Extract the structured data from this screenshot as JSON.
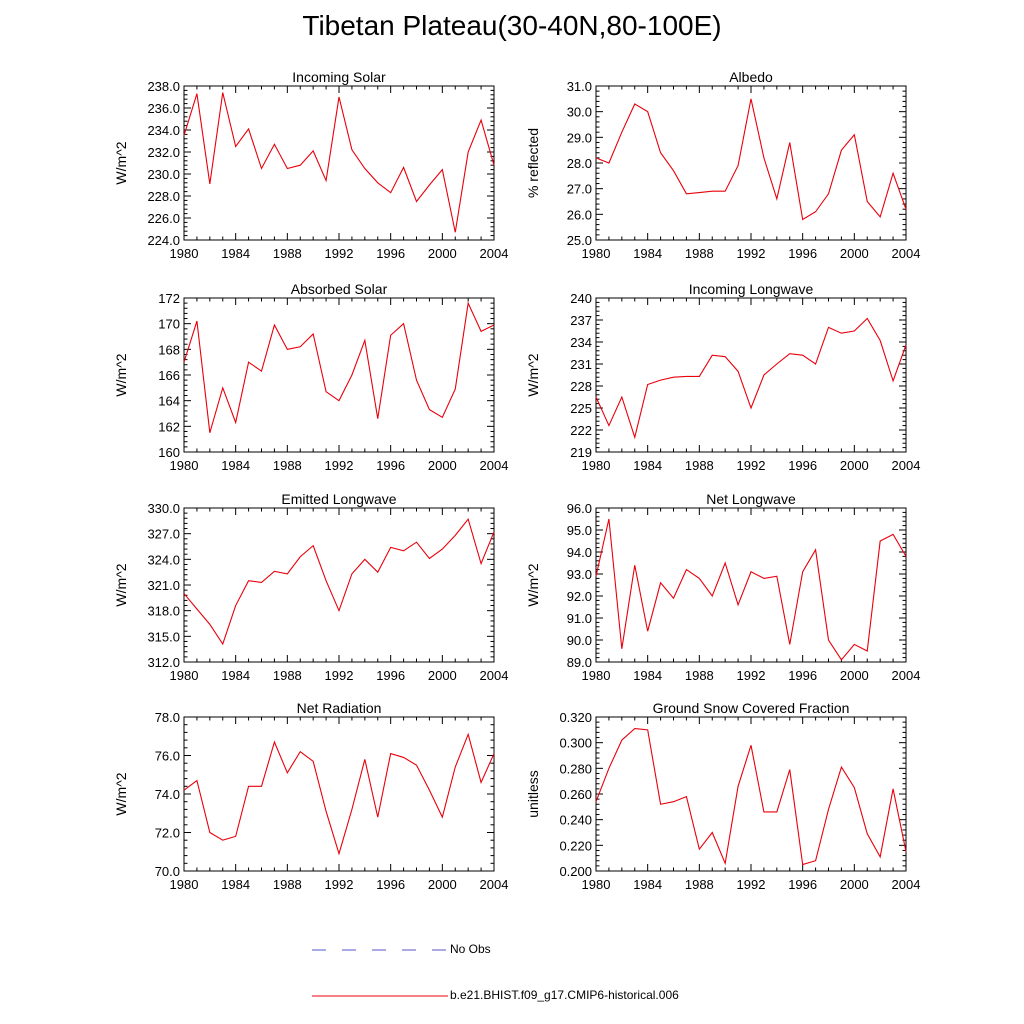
{
  "figure": {
    "title": "Tibetan Plateau(30-40N,80-100E)"
  },
  "legend": {
    "items": [
      {
        "label": "No Obs",
        "color": "#5555cc",
        "style": "dashed"
      },
      {
        "label": "b.e21.BHIST.f09_g17.CMIP6-historical.006",
        "color": "#e8000b",
        "style": "solid"
      }
    ]
  },
  "chart_data": [
    {
      "type": "line",
      "title": "Incoming Solar",
      "ylabel": "W/m^2",
      "xlabel": "",
      "xlim": [
        1980,
        2004
      ],
      "ylim": [
        224,
        238
      ],
      "yticks": [
        "224.0",
        "226.0",
        "228.0",
        "230.0",
        "232.0",
        "234.0",
        "236.0",
        "238.0"
      ],
      "xticks": [
        "1980",
        "1984",
        "1988",
        "1992",
        "1996",
        "2000",
        "2004"
      ],
      "series": [
        {
          "name": "b.e21.BHIST.f09_g17.CMIP6-historical.006",
          "color": "#e8000b",
          "x": [
            1980,
            1981,
            1982,
            1983,
            1984,
            1985,
            1986,
            1987,
            1988,
            1989,
            1990,
            1991,
            1992,
            1993,
            1994,
            1995,
            1996,
            1997,
            1998,
            1999,
            2000,
            2001,
            2002,
            2003,
            2004
          ],
          "values": [
            233.5,
            237.3,
            229.1,
            237.4,
            232.5,
            234.1,
            230.5,
            232.7,
            230.5,
            230.8,
            232.1,
            229.4,
            237.0,
            232.2,
            230.5,
            229.2,
            228.3,
            230.6,
            227.5,
            229.0,
            230.4,
            224.7,
            232.0,
            234.9,
            230.8
          ]
        }
      ]
    },
    {
      "type": "line",
      "title": "Albedo",
      "ylabel": "% reflected",
      "xlabel": "",
      "xlim": [
        1980,
        2004
      ],
      "ylim": [
        25,
        31
      ],
      "yticks": [
        "25.0",
        "26.0",
        "27.0",
        "28.0",
        "29.0",
        "30.0",
        "31.0"
      ],
      "xticks": [
        "1980",
        "1984",
        "1988",
        "1992",
        "1996",
        "2000",
        "2004"
      ],
      "series": [
        {
          "name": "b.e21.BHIST.f09_g17.CMIP6-historical.006",
          "color": "#e8000b",
          "x": [
            1980,
            1981,
            1982,
            1983,
            1984,
            1985,
            1986,
            1987,
            1988,
            1989,
            1990,
            1991,
            1992,
            1993,
            1994,
            1995,
            1996,
            1997,
            1998,
            1999,
            2000,
            2001,
            2002,
            2003,
            2004
          ],
          "values": [
            28.2,
            28.0,
            29.2,
            30.3,
            30.0,
            28.4,
            27.7,
            26.8,
            26.85,
            26.9,
            26.9,
            27.9,
            30.5,
            28.2,
            26.6,
            28.8,
            25.8,
            26.1,
            26.8,
            28.5,
            29.1,
            26.5,
            25.9,
            27.6,
            26.2
          ]
        }
      ]
    },
    {
      "type": "line",
      "title": "Absorbed Solar",
      "ylabel": "W/m^2",
      "xlabel": "",
      "xlim": [
        1980,
        2004
      ],
      "ylim": [
        160,
        172
      ],
      "yticks": [
        "160",
        "162",
        "164",
        "166",
        "168",
        "170",
        "172"
      ],
      "xticks": [
        "1980",
        "1984",
        "1988",
        "1992",
        "1996",
        "2000",
        "2004"
      ],
      "series": [
        {
          "name": "b.e21.BHIST.f09_g17.CMIP6-historical.006",
          "color": "#e8000b",
          "x": [
            1980,
            1981,
            1982,
            1983,
            1984,
            1985,
            1986,
            1987,
            1988,
            1989,
            1990,
            1991,
            1992,
            1993,
            1994,
            1995,
            1996,
            1997,
            1998,
            1999,
            2000,
            2001,
            2002,
            2003,
            2004
          ],
          "values": [
            167.0,
            170.2,
            161.5,
            165.0,
            162.3,
            167.0,
            166.3,
            169.9,
            168.0,
            168.2,
            169.2,
            164.7,
            164.0,
            166.0,
            168.7,
            162.6,
            169.1,
            170.0,
            165.6,
            163.3,
            162.7,
            164.9,
            171.6,
            169.4,
            169.9
          ]
        }
      ]
    },
    {
      "type": "line",
      "title": "Incoming Longwave",
      "ylabel": "W/m^2",
      "xlabel": "",
      "xlim": [
        1980,
        2004
      ],
      "ylim": [
        219,
        240
      ],
      "yticks": [
        "219",
        "222",
        "225",
        "228",
        "231",
        "234",
        "237",
        "240"
      ],
      "xticks": [
        "1980",
        "1984",
        "1988",
        "1992",
        "1996",
        "2000",
        "2004"
      ],
      "series": [
        {
          "name": "b.e21.BHIST.f09_g17.CMIP6-historical.006",
          "color": "#e8000b",
          "x": [
            1980,
            1981,
            1982,
            1983,
            1984,
            1985,
            1986,
            1987,
            1988,
            1989,
            1990,
            1991,
            1992,
            1993,
            1994,
            1995,
            1996,
            1997,
            1998,
            1999,
            2000,
            2001,
            2002,
            2003,
            2004
          ],
          "values": [
            226.5,
            222.6,
            226.5,
            221.0,
            228.2,
            228.8,
            229.2,
            229.3,
            229.3,
            232.2,
            232.0,
            230.0,
            225.0,
            229.5,
            231.0,
            232.4,
            232.2,
            231.0,
            236.0,
            235.2,
            235.5,
            237.2,
            234.2,
            228.7,
            233.6
          ]
        }
      ]
    },
    {
      "type": "line",
      "title": "Emitted Longwave",
      "ylabel": "W/m^2",
      "xlabel": "",
      "xlim": [
        1980,
        2004
      ],
      "ylim": [
        312,
        330
      ],
      "yticks": [
        "312.0",
        "315.0",
        "318.0",
        "321.0",
        "324.0",
        "327.0",
        "330.0"
      ],
      "xticks": [
        "1980",
        "1984",
        "1988",
        "1992",
        "1996",
        "2000",
        "2004"
      ],
      "series": [
        {
          "name": "b.e21.BHIST.f09_g17.CMIP6-historical.006",
          "color": "#e8000b",
          "x": [
            1980,
            1981,
            1982,
            1983,
            1984,
            1985,
            1986,
            1987,
            1988,
            1989,
            1990,
            1991,
            1992,
            1993,
            1994,
            1995,
            1996,
            1997,
            1998,
            1999,
            2000,
            2001,
            2002,
            2003,
            2004
          ],
          "values": [
            320.0,
            318.2,
            316.4,
            314.1,
            318.6,
            321.5,
            321.3,
            322.6,
            322.3,
            324.3,
            325.6,
            321.5,
            318.0,
            322.3,
            324.0,
            322.5,
            325.4,
            325.0,
            326.0,
            324.1,
            325.2,
            326.8,
            328.7,
            323.5,
            327.2
          ]
        }
      ]
    },
    {
      "type": "line",
      "title": "Net Longwave",
      "ylabel": "W/m^2",
      "xlabel": "",
      "xlim": [
        1980,
        2004
      ],
      "ylim": [
        89,
        96
      ],
      "yticks": [
        "89.0",
        "90.0",
        "91.0",
        "92.0",
        "93.0",
        "94.0",
        "95.0",
        "96.0"
      ],
      "xticks": [
        "1980",
        "1984",
        "1988",
        "1992",
        "1996",
        "2000",
        "2004"
      ],
      "series": [
        {
          "name": "b.e21.BHIST.f09_g17.CMIP6-historical.006",
          "color": "#e8000b",
          "x": [
            1980,
            1981,
            1982,
            1983,
            1984,
            1985,
            1986,
            1987,
            1988,
            1989,
            1990,
            1991,
            1992,
            1993,
            1994,
            1995,
            1996,
            1997,
            1998,
            1999,
            2000,
            2001,
            2002,
            2003,
            2004
          ],
          "values": [
            92.9,
            95.5,
            89.6,
            93.4,
            90.4,
            92.6,
            91.9,
            93.2,
            92.8,
            92.0,
            93.5,
            91.6,
            93.1,
            92.8,
            92.9,
            89.8,
            93.1,
            94.1,
            90.0,
            89.1,
            89.8,
            89.5,
            94.5,
            94.8,
            93.8
          ]
        }
      ]
    },
    {
      "type": "line",
      "title": "Net Radiation",
      "ylabel": "W/m^2",
      "xlabel": "",
      "xlim": [
        1980,
        2004
      ],
      "ylim": [
        70,
        78
      ],
      "yticks": [
        "70.0",
        "72.0",
        "74.0",
        "76.0",
        "78.0"
      ],
      "xticks": [
        "1980",
        "1984",
        "1988",
        "1992",
        "1996",
        "2000",
        "2004"
      ],
      "series": [
        {
          "name": "b.e21.BHIST.f09_g17.CMIP6-historical.006",
          "color": "#e8000b",
          "x": [
            1980,
            1981,
            1982,
            1983,
            1984,
            1985,
            1986,
            1987,
            1988,
            1989,
            1990,
            1991,
            1992,
            1993,
            1994,
            1995,
            1996,
            1997,
            1998,
            1999,
            2000,
            2001,
            2002,
            2003,
            2004
          ],
          "values": [
            74.2,
            74.7,
            72.0,
            71.6,
            71.8,
            74.4,
            74.4,
            76.7,
            75.1,
            76.2,
            75.7,
            73.1,
            70.9,
            73.2,
            75.8,
            72.8,
            76.1,
            75.9,
            75.5,
            74.2,
            72.8,
            75.4,
            77.1,
            74.6,
            76.1
          ]
        }
      ]
    },
    {
      "type": "line",
      "title": "Ground Snow Covered Fraction",
      "ylabel": "unitless",
      "xlabel": "",
      "xlim": [
        1980,
        2004
      ],
      "ylim": [
        0.2,
        0.32
      ],
      "yticks": [
        "0.200",
        "0.220",
        "0.240",
        "0.260",
        "0.280",
        "0.300",
        "0.320"
      ],
      "xticks": [
        "1980",
        "1984",
        "1988",
        "1992",
        "1996",
        "2000",
        "2004"
      ],
      "series": [
        {
          "name": "b.e21.BHIST.f09_g17.CMIP6-historical.006",
          "color": "#e8000b",
          "x": [
            1980,
            1981,
            1982,
            1983,
            1984,
            1985,
            1986,
            1987,
            1988,
            1989,
            1990,
            1991,
            1992,
            1993,
            1994,
            1995,
            1996,
            1997,
            1998,
            1999,
            2000,
            2001,
            2002,
            2003,
            2004
          ],
          "values": [
            0.254,
            0.28,
            0.302,
            0.311,
            0.31,
            0.252,
            0.254,
            0.258,
            0.217,
            0.23,
            0.206,
            0.266,
            0.298,
            0.246,
            0.246,
            0.279,
            0.205,
            0.208,
            0.248,
            0.281,
            0.265,
            0.229,
            0.211,
            0.264,
            0.215
          ]
        }
      ]
    }
  ]
}
